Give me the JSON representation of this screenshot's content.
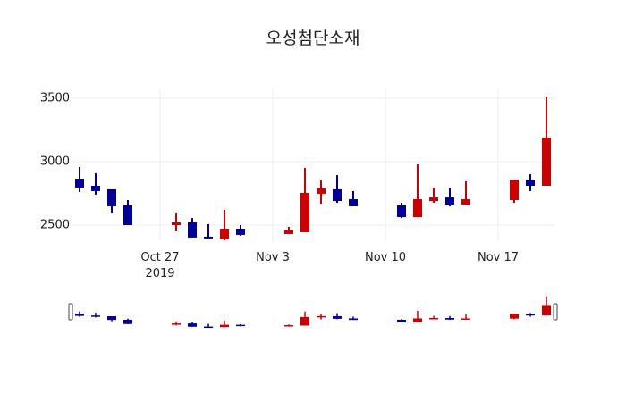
{
  "chart_data": {
    "type": "candlestick",
    "title": "오성첨단소재",
    "xlabel": "",
    "ylabel": "",
    "ylim": [
      2330,
      3560
    ],
    "yticks": [
      2500,
      3000,
      3500
    ],
    "xticks": [
      {
        "label": "Oct 27",
        "sublabel": "2019",
        "date": "2019-10-27"
      },
      {
        "label": "Nov 3",
        "sublabel": "",
        "date": "2019-11-03"
      },
      {
        "label": "Nov 10",
        "sublabel": "",
        "date": "2019-11-10"
      },
      {
        "label": "Nov 17",
        "sublabel": "",
        "date": "2019-11-17"
      }
    ],
    "grid": true,
    "rangeslider": true,
    "colors": {
      "increasing": "#cc0000",
      "decreasing": "#000099",
      "grid": "#eeeeee"
    },
    "series": [
      {
        "date": "2019-10-22",
        "open": 2866,
        "high": 2958,
        "low": 2761,
        "close": 2796
      },
      {
        "date": "2019-10-23",
        "open": 2810,
        "high": 2908,
        "low": 2740,
        "close": 2768
      },
      {
        "date": "2019-10-24",
        "open": 2782,
        "high": 2782,
        "low": 2599,
        "close": 2648
      },
      {
        "date": "2019-10-25",
        "open": 2655,
        "high": 2697,
        "low": 2500,
        "close": 2500
      },
      {
        "date": "2019-10-28",
        "open": 2500,
        "high": 2599,
        "low": 2451,
        "close": 2521
      },
      {
        "date": "2019-10-29",
        "open": 2521,
        "high": 2556,
        "low": 2402,
        "close": 2402
      },
      {
        "date": "2019-10-30",
        "open": 2409,
        "high": 2507,
        "low": 2395,
        "close": 2395
      },
      {
        "date": "2019-10-31",
        "open": 2388,
        "high": 2620,
        "low": 2381,
        "close": 2472
      },
      {
        "date": "2019-11-01",
        "open": 2472,
        "high": 2500,
        "low": 2416,
        "close": 2423
      },
      {
        "date": "2019-11-04",
        "open": 2430,
        "high": 2486,
        "low": 2430,
        "close": 2458
      },
      {
        "date": "2019-11-05",
        "open": 2444,
        "high": 2951,
        "low": 2444,
        "close": 2754
      },
      {
        "date": "2019-11-06",
        "open": 2747,
        "high": 2852,
        "low": 2669,
        "close": 2789
      },
      {
        "date": "2019-11-07",
        "open": 2782,
        "high": 2894,
        "low": 2676,
        "close": 2690
      },
      {
        "date": "2019-11-08",
        "open": 2704,
        "high": 2768,
        "low": 2648,
        "close": 2648
      },
      {
        "date": "2019-11-11",
        "open": 2655,
        "high": 2676,
        "low": 2556,
        "close": 2563
      },
      {
        "date": "2019-11-12",
        "open": 2563,
        "high": 2979,
        "low": 2563,
        "close": 2704
      },
      {
        "date": "2019-11-13",
        "open": 2690,
        "high": 2796,
        "low": 2676,
        "close": 2718
      },
      {
        "date": "2019-11-14",
        "open": 2718,
        "high": 2789,
        "low": 2648,
        "close": 2662
      },
      {
        "date": "2019-11-15",
        "open": 2662,
        "high": 2845,
        "low": 2662,
        "close": 2704
      },
      {
        "date": "2019-11-18",
        "open": 2697,
        "high": 2859,
        "low": 2676,
        "close": 2859
      },
      {
        "date": "2019-11-19",
        "open": 2859,
        "high": 2901,
        "low": 2768,
        "close": 2810
      },
      {
        "date": "2019-11-20",
        "open": 2810,
        "high": 3507,
        "low": 2810,
        "close": 3190
      }
    ]
  }
}
